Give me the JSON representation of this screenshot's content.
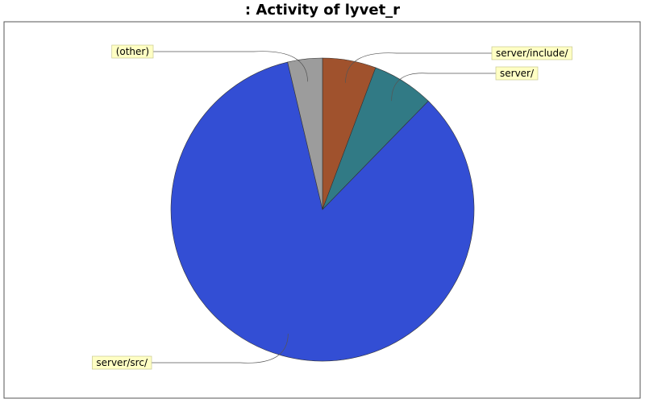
{
  "chart_data": {
    "type": "pie",
    "title": ": Activity of lyvet_r",
    "slices": [
      {
        "label": "server/include/",
        "value": 5.7,
        "color": "#a0522d"
      },
      {
        "label": "server/",
        "value": 6.6,
        "color": "#317a85"
      },
      {
        "label": "server/src/",
        "value": 84.0,
        "color": "#334ed4"
      },
      {
        "label": "(other)",
        "value": 3.7,
        "color": "#9c9c9c"
      }
    ],
    "legend": "none",
    "labels": "callouts"
  }
}
